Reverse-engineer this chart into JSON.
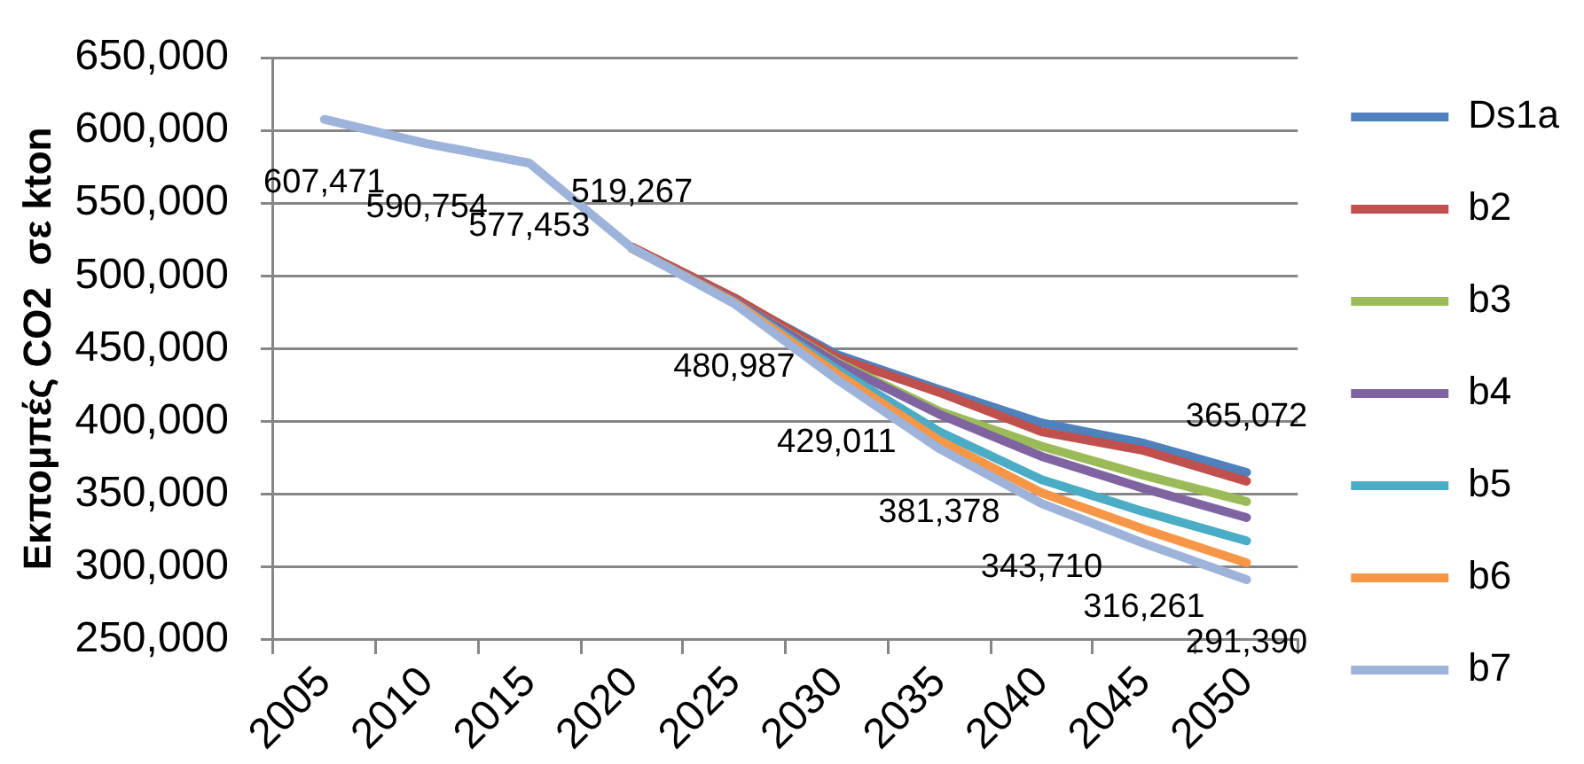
{
  "chart_data": {
    "type": "line",
    "ylabel": "Εκπομπές CO2  σε kton",
    "categories": [
      "2005",
      "2010",
      "2015",
      "2020",
      "2025",
      "2030",
      "2035",
      "2040",
      "2045",
      "2050"
    ],
    "ylim": [
      250000,
      650000
    ],
    "yticks": [
      {
        "value": 250000,
        "label": "250,000"
      },
      {
        "value": 300000,
        "label": "300,000"
      },
      {
        "value": 350000,
        "label": "350,000"
      },
      {
        "value": 400000,
        "label": "400,000"
      },
      {
        "value": 450000,
        "label": "450,000"
      },
      {
        "value": 500000,
        "label": "500,000"
      },
      {
        "value": 550000,
        "label": "550,000"
      },
      {
        "value": 600000,
        "label": "600,000"
      },
      {
        "value": 650000,
        "label": "650,000"
      }
    ],
    "grid": "y",
    "legend": "right",
    "marker": "none",
    "line_style": "solid",
    "series": [
      {
        "name": "Ds1a",
        "color": "#4f81bd",
        "values": [
          null,
          null,
          null,
          519000,
          484000,
          446000,
          422000,
          399000,
          385000,
          365072
        ],
        "value_labels": [
          null,
          null,
          null,
          null,
          null,
          null,
          null,
          null,
          null,
          "365,072"
        ]
      },
      {
        "name": "b2",
        "color": "#c0504d",
        "values": [
          null,
          null,
          null,
          520000,
          485000,
          444000,
          420000,
          393000,
          380000,
          359000
        ]
      },
      {
        "name": "b3",
        "color": "#9bbb59",
        "values": [
          null,
          null,
          null,
          519000,
          483000,
          441000,
          407000,
          383000,
          363000,
          345000
        ]
      },
      {
        "name": "b4",
        "color": "#8064a2",
        "values": [
          null,
          null,
          null,
          519000,
          483000,
          440000,
          405000,
          376000,
          354000,
          334000
        ]
      },
      {
        "name": "b5",
        "color": "#4bacc6",
        "values": [
          null,
          null,
          null,
          519000,
          482000,
          436000,
          393000,
          360000,
          338000,
          318000
        ]
      },
      {
        "name": "b6",
        "color": "#f79646",
        "values": [
          null,
          null,
          null,
          519000,
          482000,
          433000,
          387000,
          351000,
          326000,
          303000
        ]
      },
      {
        "name": "b7",
        "color": "#9db3da",
        "values": [
          607471,
          590754,
          577453,
          519267,
          480987,
          429011,
          381378,
          343710,
          316261,
          291390
        ],
        "value_labels": [
          "607,471",
          "590,754",
          "577,453",
          "519,267",
          "480,987",
          "429,011",
          "381,378",
          "343,710",
          "316,261",
          "291,390"
        ]
      }
    ]
  }
}
